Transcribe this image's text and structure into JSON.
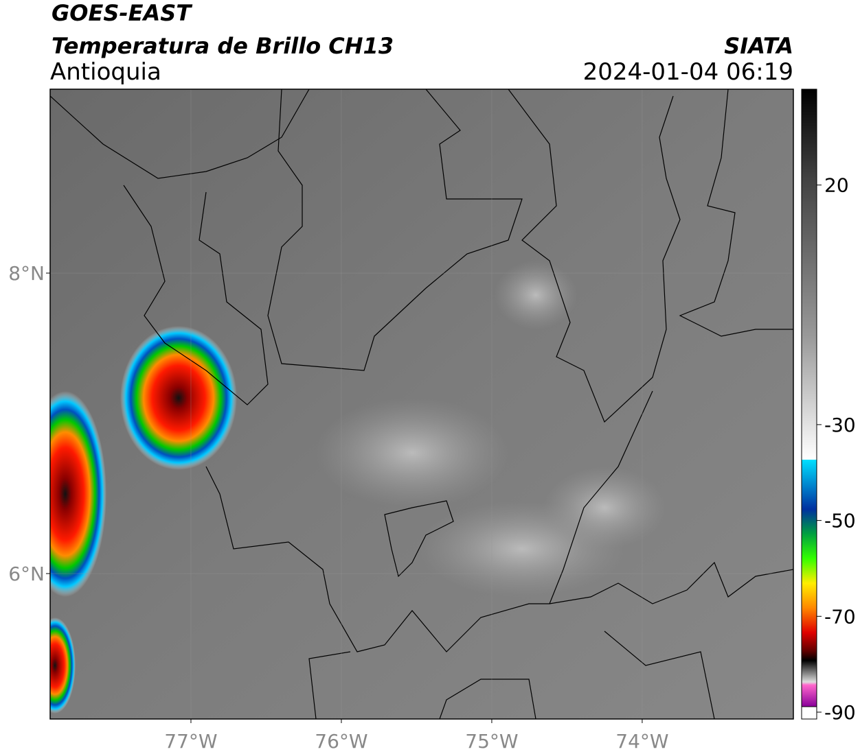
{
  "header": {
    "title": "GOES-EAST",
    "subtitle": "Temperatura de Brillo CH13",
    "region": "Antioquia",
    "source": "SIATA",
    "datetime": "2024-01-04 06:19"
  },
  "map": {
    "xlim": [
      -77.936,
      -72.995
    ],
    "ylim": [
      5.032,
      9.224
    ],
    "xticks": [
      {
        "value": -77,
        "label": "77°W"
      },
      {
        "value": -76,
        "label": "76°W"
      },
      {
        "value": -75,
        "label": "75°W"
      },
      {
        "value": -74,
        "label": "74°W"
      }
    ],
    "yticks": [
      {
        "value": 8,
        "label": "8°N"
      },
      {
        "value": 6,
        "label": "6°N"
      }
    ]
  },
  "colorbar": {
    "range": [
      -90,
      40
    ],
    "ticks": [
      20,
      -30,
      -50,
      -70,
      -90
    ]
  }
}
